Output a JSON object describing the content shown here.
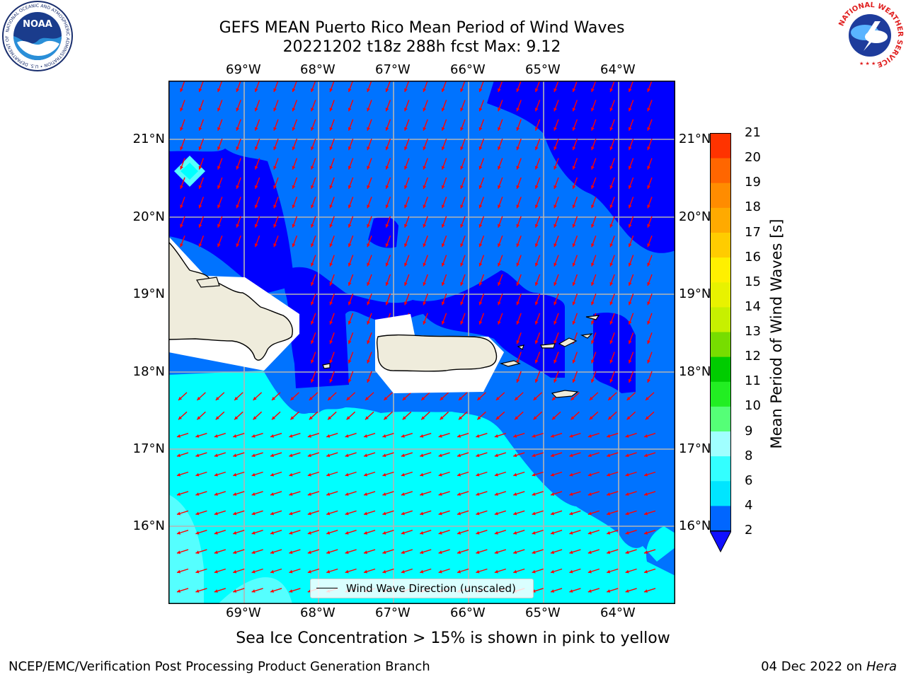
{
  "title_line1": "GEFS MEAN Puerto Rico Mean Period of Wind Waves",
  "title_line2": "20221202 t18z 288h fcst   Max: 9.12",
  "lon_ticks": [
    "69°W",
    "68°W",
    "67°W",
    "66°W",
    "65°W",
    "64°W"
  ],
  "lat_ticks": [
    "21°N",
    "20°N",
    "19°N",
    "18°N",
    "17°N",
    "16°N"
  ],
  "legend_label": "Wind Wave Direction (unscaled)",
  "colorbar": {
    "label": "Mean Period of Wind Waves [s]",
    "ticks": [
      "2",
      "4",
      "6",
      "8",
      "9",
      "10",
      "11",
      "12",
      "13",
      "14",
      "15",
      "16",
      "17",
      "18",
      "19",
      "20",
      "21"
    ],
    "colors": [
      "#0066ff",
      "#00e5ff",
      "#33ffff",
      "#a0ffff",
      "#55ff77",
      "#22ee22",
      "#00cc00",
      "#77dd00",
      "#c7f000",
      "#e8f200",
      "#fff000",
      "#ffcc00",
      "#ffaa00",
      "#ff8c00",
      "#ff6600",
      "#ff3300",
      "#ff0000"
    ],
    "under_color": "#1010ff"
  },
  "field_colors": {
    "dark": "#0000ff",
    "medium": "#0073ff",
    "cyan": "#00ffff",
    "light_cyan": "#55ffff",
    "land": "#efecdc",
    "arrow": "#ff0000"
  },
  "sea_ice_note": "Sea Ice Concentration > 15% is shown in pink to yellow",
  "footer_left": "NCEP/EMC/Verification Post Processing Product Generation Branch",
  "footer_right_text": "04 Dec 2022 on",
  "footer_right_host": "Hera",
  "noaa_logo": {
    "center_text": "NOAA",
    "ring_text": "NATIONAL OCEANIC AND ATMOSPHERIC ADMINISTRATION • U.S. DEPARTMENT OF COMMERCE"
  },
  "nws_logo": {
    "ring_text": "NATIONAL WEATHER SERVICE"
  }
}
